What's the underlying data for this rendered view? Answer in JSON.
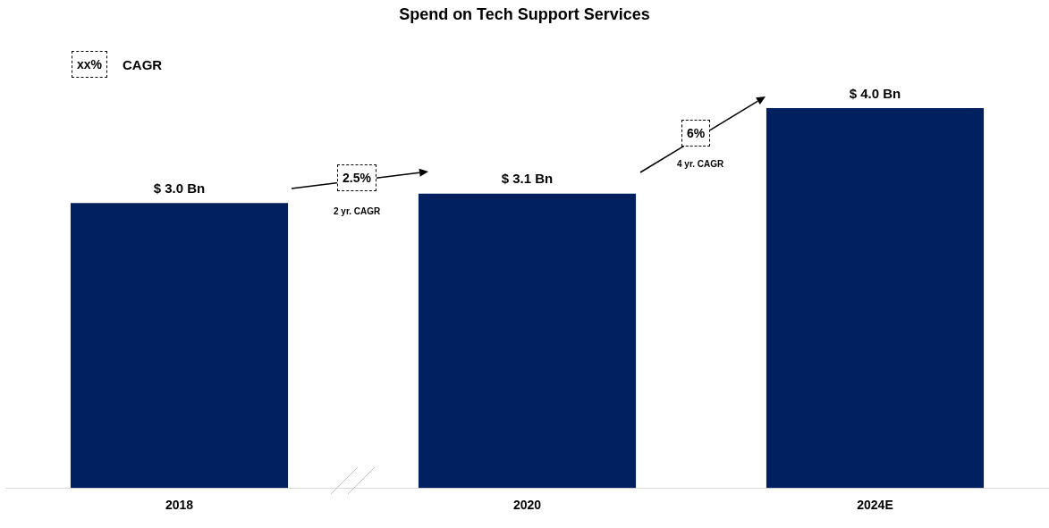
{
  "chart_data": {
    "type": "bar",
    "title": "Spend on Tech Support Services",
    "categories": [
      "2018",
      "2020",
      "2024E"
    ],
    "values": [
      3.0,
      3.1,
      4.0
    ],
    "value_labels": [
      "$ 3.0 Bn",
      "$ 3.1 Bn",
      "$ 4.0 Bn"
    ],
    "color": "#002060",
    "tick_labels": "x",
    "grid": false,
    "legend": false,
    "annotations": [
      "xx%",
      "CAGR",
      "2.5%",
      "2 yr. CAGR",
      "6%",
      "4 yr. CAGR"
    ]
  }
}
